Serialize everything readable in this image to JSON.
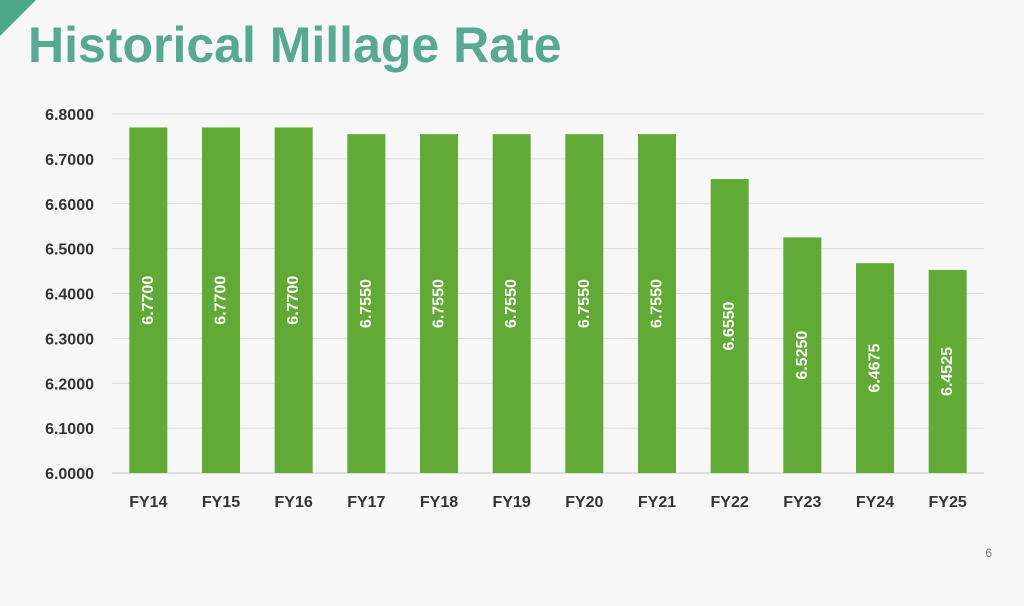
{
  "slide": {
    "title": "Historical Millage Rate",
    "page_number": "6"
  },
  "colors": {
    "bar": "#61aa35",
    "title": "#58a994",
    "grid": "#dcdcdc",
    "background": "#f7f7f7"
  },
  "chart_data": {
    "type": "bar",
    "title": "",
    "xlabel": "",
    "ylabel": "",
    "categories": [
      "FY14",
      "FY15",
      "FY16",
      "FY17",
      "FY18",
      "FY19",
      "FY20",
      "FY21",
      "FY22",
      "FY23",
      "FY24",
      "FY25"
    ],
    "values": [
      6.77,
      6.77,
      6.77,
      6.755,
      6.755,
      6.755,
      6.755,
      6.755,
      6.655,
      6.525,
      6.4675,
      6.4525
    ],
    "value_labels": [
      "6.7700",
      "6.7700",
      "6.7700",
      "6.7550",
      "6.7550",
      "6.7550",
      "6.7550",
      "6.7550",
      "6.6550",
      "6.5250",
      "6.4675",
      "6.4525"
    ],
    "yticks": [
      "6.0000",
      "6.1000",
      "6.2000",
      "6.3000",
      "6.4000",
      "6.5000",
      "6.6000",
      "6.7000",
      "6.8000"
    ],
    "ylim": [
      6.0,
      6.8
    ],
    "grid": true,
    "legend": "none",
    "data_label_orientation": "vertical"
  }
}
